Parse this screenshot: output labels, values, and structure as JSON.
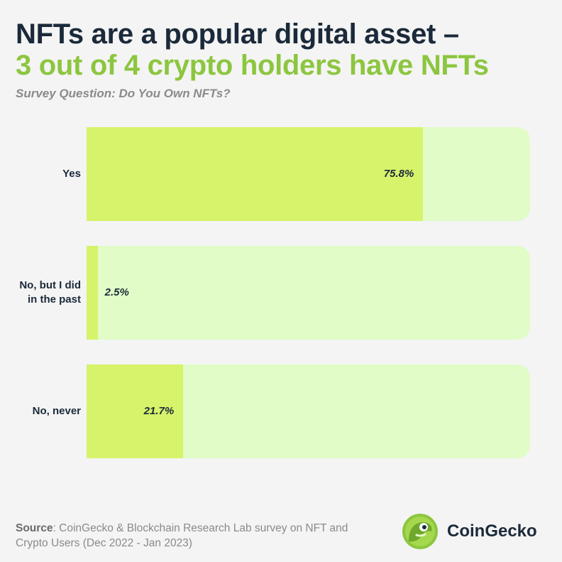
{
  "header": {
    "title_line1": "NFTs are a popular digital asset –",
    "title_line2": "3 out of 4 crypto holders have NFTs",
    "subtitle": "Survey Question: Do You Own NFTs?"
  },
  "chart_data": {
    "type": "bar",
    "orientation": "horizontal",
    "title": "NFTs are a popular digital asset – 3 out of 4 crypto holders have NFTs",
    "subtitle": "Survey Question: Do You Own NFTs?",
    "categories": [
      "Yes",
      "No, but I did in the past",
      "No, never"
    ],
    "category_lines": [
      [
        "Yes"
      ],
      [
        "No, but I did",
        "in the past"
      ],
      [
        "No, never"
      ]
    ],
    "values": [
      75.8,
      2.5,
      21.7
    ],
    "value_labels": [
      "75.8%",
      "2.5%",
      "21.7%"
    ],
    "xlim": [
      0,
      100
    ],
    "unit": "%",
    "grid": false,
    "colors": {
      "fill": "#d6f36b",
      "track": "#e1fcc7",
      "text": "#1b2a3a",
      "accent": "#8cc63f"
    }
  },
  "footer": {
    "source_label": "Source",
    "source_text": ": CoinGecko & Blockchain Research Lab survey on NFT and Crypto Users (Dec 2022 - Jan 2023)"
  },
  "brand": {
    "name": "CoinGecko",
    "icon": "gecko-logo-icon"
  }
}
